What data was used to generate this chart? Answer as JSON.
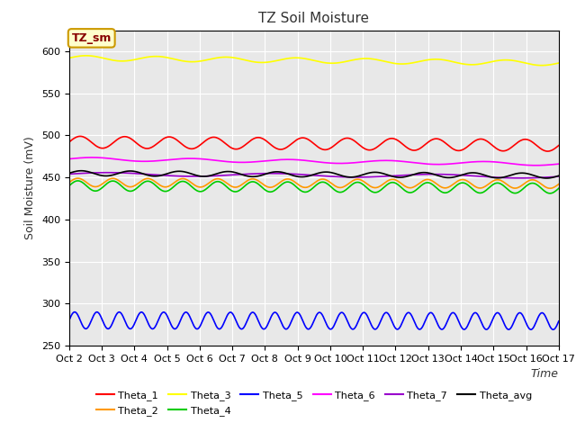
{
  "title": "TZ Soil Moisture",
  "ylabel": "Soil Moisture (mV)",
  "xlabel": "Time",
  "xlim": [
    0,
    1
  ],
  "ylim": [
    250,
    625
  ],
  "yticks": [
    250,
    300,
    350,
    400,
    450,
    500,
    550,
    600
  ],
  "x_tick_labels": [
    "Oct 2",
    "Oct 3",
    "Oct 4",
    "Oct 5",
    "Oct 6",
    "Oct 7",
    "Oct 8",
    "Oct 9",
    "Oct 10",
    "Oct 11",
    "Oct 12",
    "Oct 13",
    "Oct 14",
    "Oct 15",
    "Oct 16",
    "Oct 17"
  ],
  "num_points": 500,
  "series": {
    "Theta_1": {
      "color": "#ff0000",
      "base": 492,
      "amplitude": 7,
      "freq": 11.0,
      "trend": -4.0
    },
    "Theta_2": {
      "color": "#ff9900",
      "base": 444,
      "amplitude": 5,
      "freq": 14.0,
      "trend": -2.0
    },
    "Theta_3": {
      "color": "#ffff00",
      "base": 592,
      "amplitude": 3,
      "freq": 7.0,
      "trend": -6.0
    },
    "Theta_4": {
      "color": "#00cc00",
      "base": 440,
      "amplitude": 6,
      "freq": 14.0,
      "trend": -3.0
    },
    "Theta_5": {
      "color": "#0000ff",
      "base": 280,
      "amplitude": 10,
      "freq": 22.0,
      "trend": -1.0
    },
    "Theta_6": {
      "color": "#ff00ff",
      "base": 472,
      "amplitude": 2,
      "freq": 5.0,
      "trend": -6.0
    },
    "Theta_7": {
      "color": "#9900cc",
      "base": 454,
      "amplitude": 2,
      "freq": 3.0,
      "trend": -3.0
    },
    "Theta_avg": {
      "color": "#000000",
      "base": 455,
      "amplitude": 3,
      "freq": 10.0,
      "trend": -3.0
    }
  },
  "background_color": "#e8e8e8",
  "label_box_facecolor": "#ffffcc",
  "label_box_edgecolor": "#cc9900",
  "label_text": "TZ_sm",
  "label_text_color": "#880000"
}
